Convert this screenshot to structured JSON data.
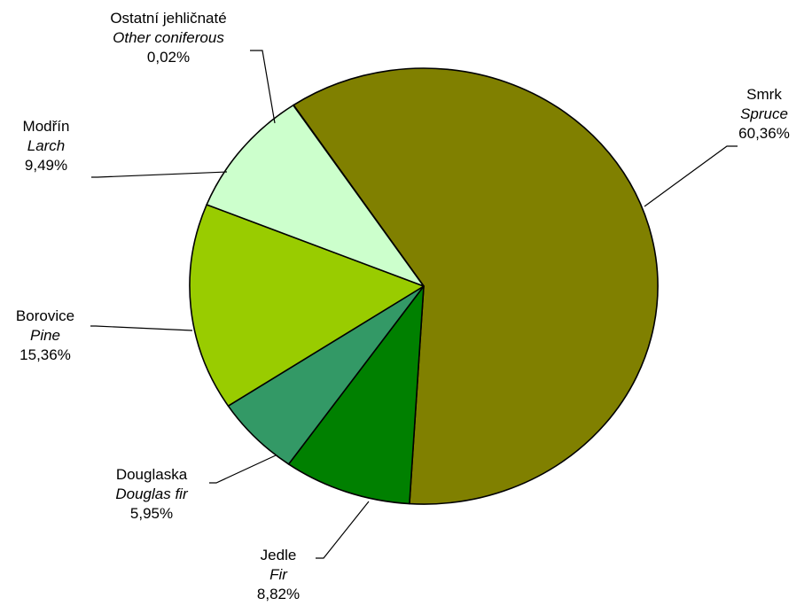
{
  "chart_data": {
    "type": "pie",
    "slices": [
      {
        "name": "Smrk",
        "name_en": "Spruce",
        "value": 60.36,
        "value_label": "60,36%",
        "color": "#808000"
      },
      {
        "name": "Jedle",
        "name_en": "Fir",
        "value": 8.82,
        "value_label": "8,82%",
        "color": "#008000"
      },
      {
        "name": "Douglaska",
        "name_en": "Douglas fir",
        "value": 5.95,
        "value_label": "5,95%",
        "color": "#339966"
      },
      {
        "name": "Borovice",
        "name_en": "Pine",
        "value": 15.36,
        "value_label": "15,36%",
        "color": "#99CC00"
      },
      {
        "name": "Modřín",
        "name_en": "Larch",
        "value": 9.49,
        "value_label": "9,49%",
        "color": "#CCFFCC"
      },
      {
        "name": "Ostatní jehličnaté",
        "name_en": "Other coniferous",
        "value": 0.02,
        "value_label": "0,02%",
        "color": "#FFFF99"
      }
    ],
    "start_position": "upper-left, proceeding clockwise",
    "legend": "none (data labels with leader lines)"
  }
}
